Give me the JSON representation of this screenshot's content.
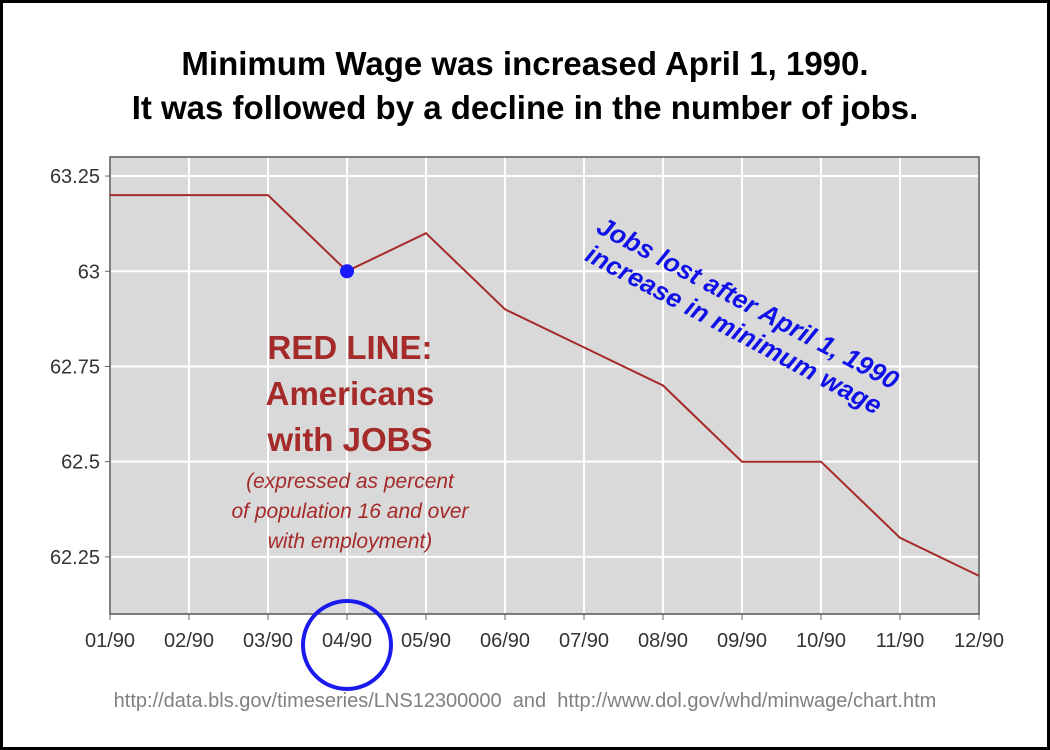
{
  "title": {
    "line1": "Minimum Wage was increased April 1, 1990.",
    "line2": "It was followed by a decline in the number of jobs."
  },
  "source": "http://data.bls.gov/timeseries/LNS12300000  and  http://www.dol.gov/whd/minwage/chart.htm",
  "chart_data": {
    "type": "line",
    "categories": [
      "01/90",
      "02/90",
      "03/90",
      "04/90",
      "05/90",
      "06/90",
      "07/90",
      "08/90",
      "09/90",
      "10/90",
      "11/90",
      "12/90"
    ],
    "series": [
      {
        "values": [
          63.2,
          63.2,
          63.2,
          63.0,
          63.1,
          62.9,
          62.8,
          62.7,
          62.5,
          62.5,
          62.3,
          62.2
        ]
      }
    ],
    "y_ticks": [
      "62.25",
      "62.5",
      "62.75",
      "63",
      "63.25"
    ],
    "ylim": [
      62.1,
      63.3
    ],
    "grid": true,
    "highlight": {
      "category": "04/90",
      "value": 63.0
    },
    "annotations": {
      "red_title": [
        "RED LINE:",
        "Americans",
        "with JOBS"
      ],
      "red_note": [
        "(expressed as percent",
        "of population 16 and over",
        "with employment)"
      ],
      "blue_note": [
        "Jobs lost after April 1, 1990",
        "increase in minimum wage"
      ]
    },
    "colors": {
      "line": "#a52a2a",
      "marker": "#1a1aff",
      "circle": "#1a1aee",
      "plot_background": "#d9d9d9",
      "grid": "#ffffff",
      "red_text": "#a52a2a",
      "blue_text": "#1010e8"
    }
  }
}
